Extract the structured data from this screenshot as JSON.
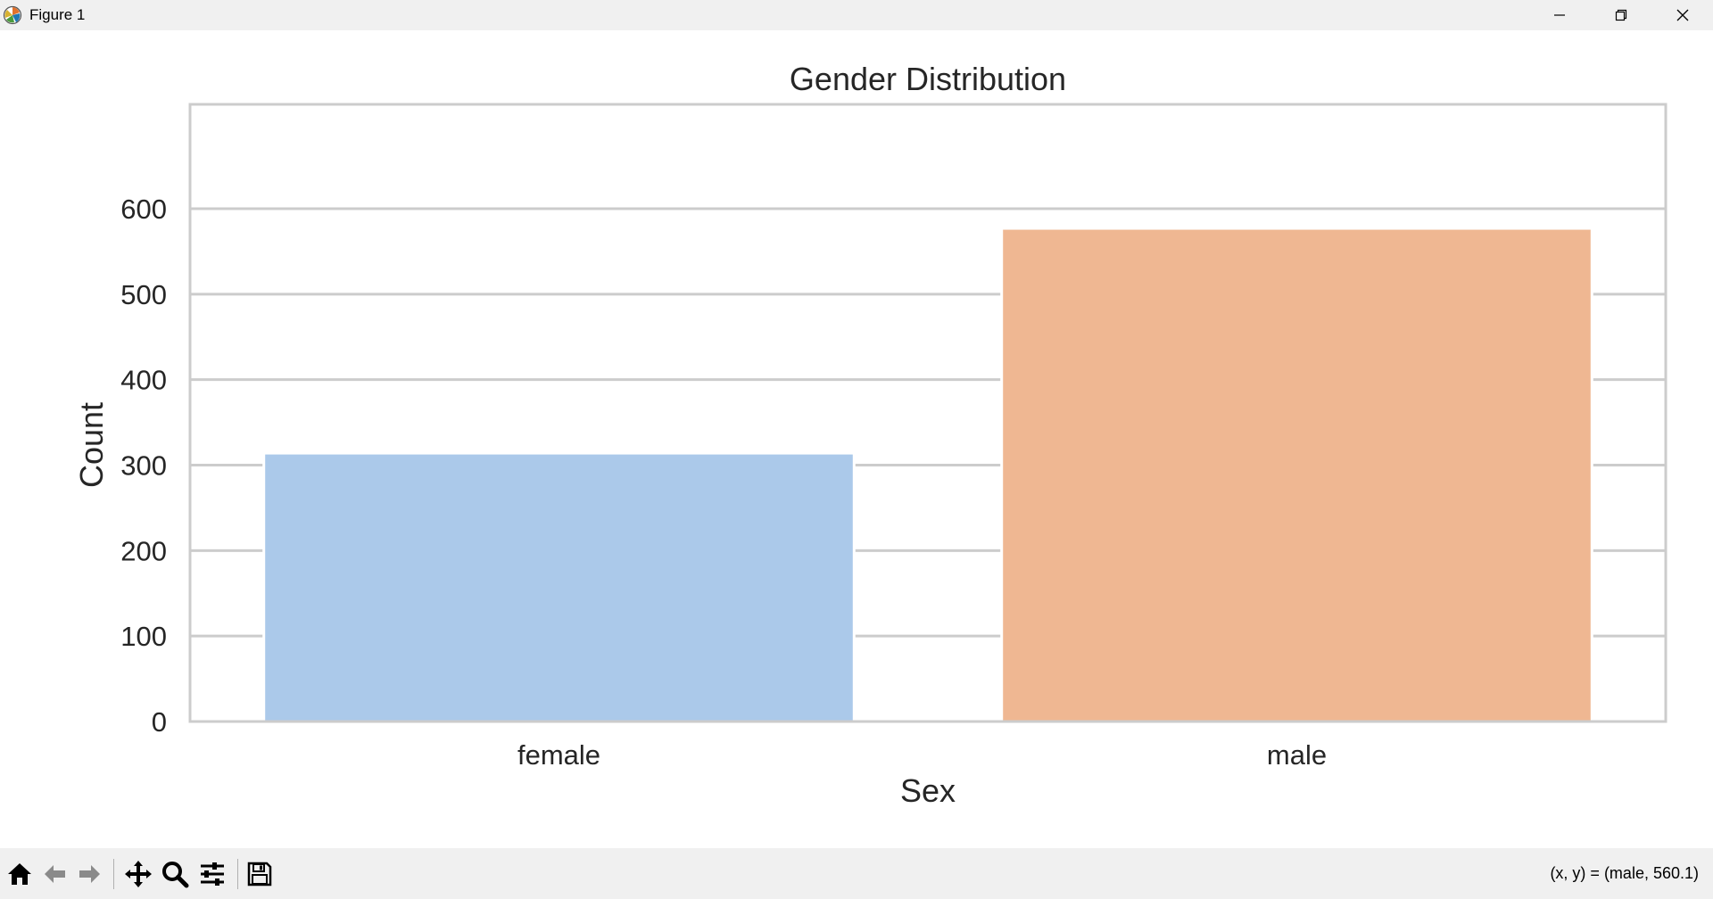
{
  "window": {
    "title": "Figure 1",
    "icon": "matplotlib-logo-icon",
    "controls": [
      "minimize-icon",
      "restore-icon",
      "close-icon"
    ]
  },
  "chart_data": {
    "type": "bar",
    "title": "Gender Distribution",
    "xlabel": "Sex",
    "ylabel": "Count",
    "categories": [
      "female",
      "male"
    ],
    "values": [
      314,
      577
    ],
    "colors": [
      "#abc9ea",
      "#efb792"
    ],
    "ylim": [
      0,
      600
    ],
    "yticks": [
      "0",
      "100",
      "200",
      "300",
      "400",
      "500",
      "600"
    ],
    "ytick_values": [
      0,
      100,
      200,
      300,
      400,
      500,
      600
    ],
    "grid": "y",
    "grid_color": "#cccccc",
    "frame_color": "#cccccc"
  },
  "toolbar": {
    "tools": [
      {
        "name": "home-icon"
      },
      {
        "name": "back-icon"
      },
      {
        "name": "forward-icon"
      },
      {
        "name": "pan-icon"
      },
      {
        "name": "zoom-icon"
      },
      {
        "name": "configure-subplots-icon"
      },
      {
        "name": "save-icon"
      }
    ],
    "coords_text": "(x, y) = (male, 560.1)"
  }
}
